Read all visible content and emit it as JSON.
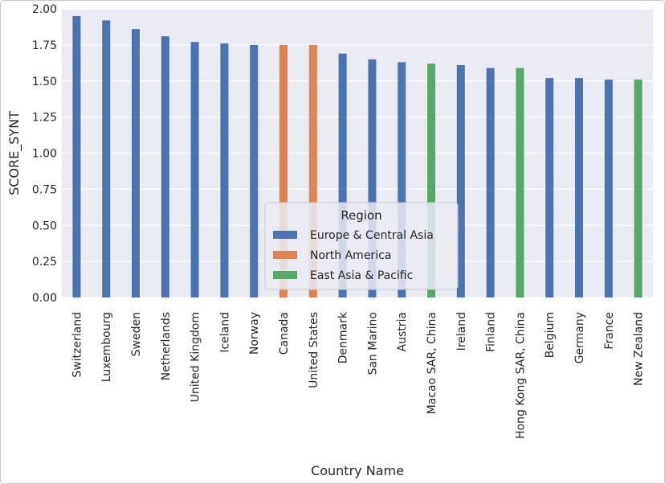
{
  "chart_data": {
    "type": "bar",
    "xlabel": "Country Name",
    "ylabel": "SCORE_SYNT",
    "ylim": [
      0,
      2.0
    ],
    "yticks": [
      "0.00",
      "0.25",
      "0.50",
      "0.75",
      "1.00",
      "1.25",
      "1.50",
      "1.75",
      "2.00"
    ],
    "grid": true,
    "categories": [
      "Switzerland",
      "Luxembourg",
      "Sweden",
      "Netherlands",
      "United Kingdom",
      "Iceland",
      "Norway",
      "Canada",
      "United States",
      "Denmark",
      "San Marino",
      "Austria",
      "Macao SAR, China",
      "Ireland",
      "Finland",
      "Hong Kong SAR, China",
      "Belgium",
      "Germany",
      "France",
      "New Zealand"
    ],
    "legend": {
      "title": "Region",
      "position": "lower-center",
      "entries": [
        {
          "name": "Europe & Central Asia",
          "color": "#4c72b0"
        },
        {
          "name": "North America",
          "color": "#dd8452"
        },
        {
          "name": "East Asia & Pacific",
          "color": "#55a868"
        }
      ]
    },
    "series": [
      {
        "name": "Europe & Central Asia",
        "color": "#4c72b0",
        "values": [
          1.95,
          1.92,
          1.86,
          1.81,
          1.77,
          1.76,
          1.75,
          null,
          null,
          1.69,
          1.65,
          1.63,
          null,
          1.61,
          1.59,
          null,
          1.52,
          1.52,
          1.51,
          null
        ]
      },
      {
        "name": "North America",
        "color": "#dd8452",
        "values": [
          null,
          null,
          null,
          null,
          null,
          null,
          null,
          1.75,
          1.75,
          null,
          null,
          null,
          null,
          null,
          null,
          null,
          null,
          null,
          null,
          null
        ]
      },
      {
        "name": "East Asia & Pacific",
        "color": "#55a868",
        "values": [
          null,
          null,
          null,
          null,
          null,
          null,
          null,
          null,
          null,
          null,
          null,
          null,
          1.62,
          null,
          null,
          1.59,
          null,
          null,
          null,
          1.51
        ]
      }
    ]
  }
}
